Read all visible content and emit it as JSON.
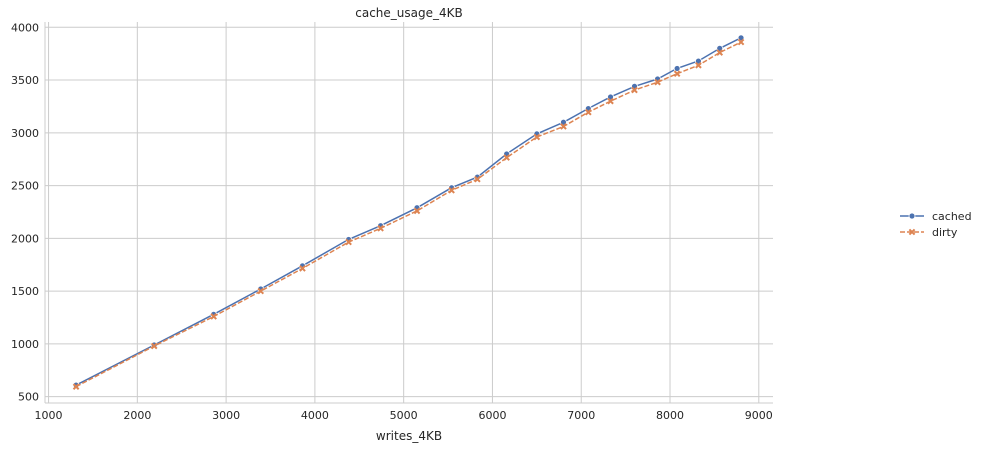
{
  "chart_data": {
    "type": "line",
    "title": "cache_usage_4KB",
    "xlabel": "writes_4KB",
    "ylabel": "",
    "xlim": [
      960,
      9160
    ],
    "ylim": [
      440,
      4050
    ],
    "xticks": [
      1000,
      2000,
      3000,
      4000,
      5000,
      6000,
      7000,
      8000,
      9000
    ],
    "yticks": [
      500,
      1000,
      1500,
      2000,
      2500,
      3000,
      3500,
      4000
    ],
    "grid": true,
    "legend_position": "right",
    "series": [
      {
        "name": "cached",
        "color": "#4c72b0",
        "marker": "circle",
        "dash": "solid",
        "x": [
          1310,
          2190,
          2860,
          3390,
          3860,
          4380,
          4740,
          5150,
          5540,
          5830,
          6160,
          6500,
          6800,
          7080,
          7330,
          7600,
          7860,
          8080,
          8320,
          8560,
          8800
        ],
        "y": [
          610,
          990,
          1280,
          1520,
          1740,
          1990,
          2120,
          2290,
          2480,
          2580,
          2800,
          2990,
          3100,
          3230,
          3340,
          3440,
          3510,
          3610,
          3680,
          3800,
          3900
        ]
      },
      {
        "name": "dirty",
        "color": "#dd8452",
        "marker": "x",
        "dash": "dashed",
        "x": [
          1310,
          2190,
          2860,
          3390,
          3860,
          4380,
          4740,
          5150,
          5540,
          5830,
          6160,
          6500,
          6800,
          7080,
          7330,
          7600,
          7860,
          8080,
          8320,
          8560,
          8800
        ],
        "y": [
          595,
          980,
          1260,
          1500,
          1715,
          1965,
          2095,
          2260,
          2455,
          2560,
          2765,
          2960,
          3060,
          3195,
          3300,
          3405,
          3480,
          3560,
          3640,
          3760,
          3860
        ]
      }
    ]
  }
}
